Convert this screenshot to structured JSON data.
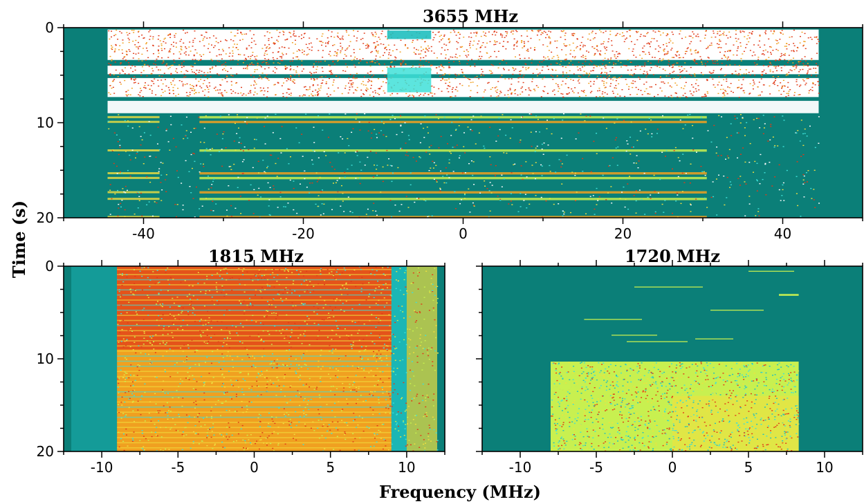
{
  "figure": {
    "xlabel": "Frequency (MHz)",
    "ylabel": "Time (s)"
  },
  "colors": {
    "background": "#0b7f78",
    "colormap": [
      "#0b7f78",
      "#1fbfbf",
      "#3fe0d8",
      "#c8f050",
      "#f0e040",
      "#f0a020",
      "#e03a18",
      "#ffffff"
    ]
  },
  "chart_data": [
    {
      "type": "heatmap",
      "title": "3655 MHz",
      "xlabel": "",
      "ylabel": "",
      "xlim": [
        -50,
        50
      ],
      "ylim": [
        20,
        0
      ],
      "x_ticks": [
        -40,
        -20,
        0,
        20,
        40
      ],
      "y_ticks": [
        0,
        10,
        20
      ],
      "signal_band": [
        -44.5,
        44.5
      ],
      "saturated_time_range": [
        0,
        9
      ],
      "notes": "dense white/red wideband activity 0-9 s across -44.5..44.5 MHz; intermittent bands after 9 s"
    },
    {
      "type": "heatmap",
      "title": "1815 MHz",
      "xlabel": "",
      "ylabel": "",
      "xlim": [
        -12.5,
        12.5
      ],
      "ylim": [
        20,
        0
      ],
      "x_ticks": [
        -10,
        -5,
        0,
        5,
        10
      ],
      "y_ticks": [
        0,
        10,
        20
      ],
      "signal_band": [
        -9,
        9
      ],
      "notes": "strong red/orange/yellow occupancy over -9..9 MHz for full 20 s; cyan guard near 9-10 MHz"
    },
    {
      "type": "heatmap",
      "title": "1720 MHz",
      "xlabel": "",
      "ylabel": "",
      "xlim": [
        -12.5,
        12.5
      ],
      "ylim": [
        20,
        0
      ],
      "x_ticks": [
        -10,
        -5,
        0,
        5,
        10
      ],
      "y_ticks": [],
      "signal_band": [
        -8,
        8.3
      ],
      "active_time_range": [
        10.3,
        20
      ],
      "notes": "sparse short bursts before ~10 s; dense yellow/green block -8..8.3 MHz from ~10.3 to 20 s"
    }
  ]
}
